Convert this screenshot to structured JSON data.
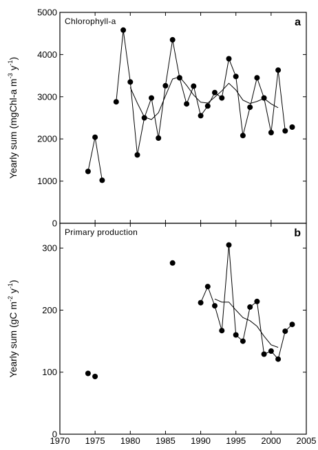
{
  "figure": {
    "x_tick_labels": [
      "1970",
      "1975",
      "1980",
      "1985",
      "1990",
      "1995",
      "2000",
      "2005"
    ]
  },
  "chart_data": [
    {
      "type": "scatter",
      "title": "Chlorophyll-a",
      "panel_label": "a",
      "ylabel_parts": [
        "Yearly sum (mgChl-a m",
        "-3",
        " y",
        "-1",
        ")"
      ],
      "xlim": [
        1970,
        2005
      ],
      "ylim": [
        0,
        5000
      ],
      "yticks": [
        0,
        1000,
        2000,
        3000,
        4000,
        5000
      ],
      "y_tick_labels": [
        "0",
        "1000",
        "2000",
        "3000",
        "4000",
        "5000"
      ],
      "series": [
        {
          "type": "scatter",
          "x": [
            1974,
            1975,
            1976,
            1978,
            1979,
            1980,
            1981,
            1982,
            1983,
            1984,
            1985,
            1986,
            1987,
            1988,
            1989,
            1990,
            1991,
            1992,
            1993,
            1994,
            1995,
            1996,
            1997,
            1998,
            1999,
            2000,
            2001,
            2002,
            2003
          ],
          "y": [
            1230,
            2040,
            1020,
            2880,
            4580,
            3350,
            1620,
            2500,
            2970,
            2020,
            3260,
            4350,
            3450,
            2830,
            3250,
            2550,
            2780,
            3100,
            2970,
            3900,
            3480,
            2080,
            2750,
            3450,
            2970,
            2150,
            3630,
            2190,
            2280
          ]
        },
        {
          "type": "line",
          "x": [
            1974,
            1975,
            1976
          ],
          "y": [
            1230,
            2040,
            1020
          ]
        },
        {
          "type": "line",
          "x": [
            1978,
            1979,
            1980,
            1981,
            1982,
            1983,
            1984,
            1985,
            1986,
            1987,
            1988,
            1989,
            1990,
            1991,
            1992,
            1993,
            1994,
            1995,
            1996,
            1997,
            1998,
            1999,
            2000,
            2001,
            2002
          ],
          "y": [
            2880,
            4580,
            3350,
            1620,
            2500,
            2970,
            2020,
            3260,
            4350,
            3450,
            2830,
            3250,
            2550,
            2780,
            3100,
            2970,
            3900,
            3480,
            2080,
            2750,
            3450,
            2970,
            2150,
            3630,
            2190
          ]
        },
        {
          "type": "line",
          "x": [
            1980,
            1981,
            1982,
            1983,
            1984,
            1985,
            1986,
            1987,
            1988,
            1989,
            1990,
            1991,
            1992,
            1993,
            1994,
            1995,
            1996,
            1997,
            1998,
            1999,
            2000,
            2001
          ],
          "y": [
            3220,
            2850,
            2520,
            2460,
            2620,
            3020,
            3420,
            3470,
            3270,
            3040,
            2870,
            2850,
            2990,
            3140,
            3320,
            3160,
            2920,
            2840,
            2890,
            2960,
            2830,
            2740
          ]
        }
      ]
    },
    {
      "type": "scatter",
      "title": "Primary production",
      "panel_label": "b",
      "ylabel_parts": [
        "Yearly sum (gC m",
        "-2",
        " y",
        "-1",
        ")"
      ],
      "xlim": [
        1970,
        2005
      ],
      "ylim": [
        0,
        340
      ],
      "yticks": [
        0,
        100,
        200,
        300
      ],
      "y_tick_labels": [
        "0",
        "100",
        "200",
        "300"
      ],
      "series": [
        {
          "type": "scatter",
          "x": [
            1974,
            1975,
            1986,
            1990,
            1991,
            1992,
            1993,
            1994,
            1995,
            1996,
            1997,
            1998,
            1999,
            2000,
            2001,
            2002,
            2003
          ],
          "y": [
            98,
            93,
            276,
            212,
            238,
            207,
            167,
            305,
            160,
            150,
            205,
            214,
            129,
            134,
            121,
            166,
            177
          ]
        },
        {
          "type": "line",
          "x": [
            1990,
            1991,
            1992,
            1993,
            1994,
            1995,
            1996,
            1997,
            1998,
            1999,
            2000,
            2001,
            2002,
            2003
          ],
          "y": [
            212,
            238,
            207,
            167,
            305,
            160,
            150,
            205,
            214,
            129,
            134,
            121,
            166,
            177
          ]
        },
        {
          "type": "line",
          "x": [
            1992,
            1993,
            1994,
            1995,
            1996,
            1997,
            1998,
            1999,
            2000,
            2001
          ],
          "y": [
            218,
            213,
            213,
            200,
            188,
            183,
            174,
            158,
            144,
            140
          ]
        }
      ]
    }
  ]
}
